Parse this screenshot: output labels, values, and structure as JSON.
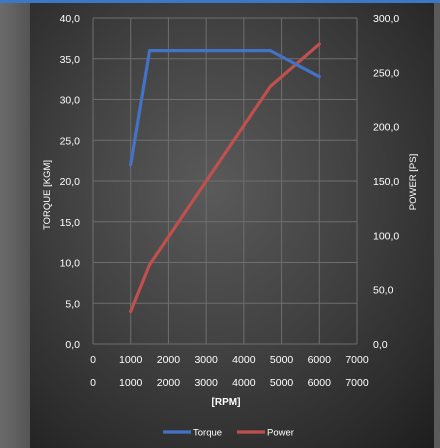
{
  "chart_data": {
    "type": "line",
    "xlabel": "[RPM]",
    "ylabel_left": "TORQUE [KGM]",
    "ylabel_right": "POWER [PS]",
    "x_ticks": [
      "0",
      "1000",
      "2000",
      "3000",
      "4000",
      "5000",
      "6000",
      "7000"
    ],
    "x_ticks_secondary": [
      "0",
      "1000",
      "2000",
      "3000",
      "4000",
      "5000",
      "6000",
      "7000"
    ],
    "y_left_ticks": [
      "0,0",
      "5,0",
      "10,0",
      "15,0",
      "20,0",
      "25,0",
      "30,0",
      "35,0",
      "40,0"
    ],
    "y_right_ticks": [
      "0,0",
      "50,0",
      "100,0",
      "150,0",
      "200,0",
      "250,0",
      "300,0"
    ],
    "xlim": [
      0,
      7000
    ],
    "ylim_left": [
      0,
      40
    ],
    "ylim_right": [
      0,
      300
    ],
    "grid": true,
    "legend_position": "bottom",
    "series": [
      {
        "name": "Torque",
        "axis": "left",
        "color": "#4472c4",
        "x": [
          1000,
          1500,
          4700,
          6000
        ],
        "y": [
          22,
          36,
          36,
          32.8
        ]
      },
      {
        "name": "Power",
        "axis": "right",
        "color": "#c0504d",
        "x": [
          1000,
          1500,
          4700,
          6000
        ],
        "y": [
          30,
          73,
          237,
          276
        ]
      }
    ]
  }
}
